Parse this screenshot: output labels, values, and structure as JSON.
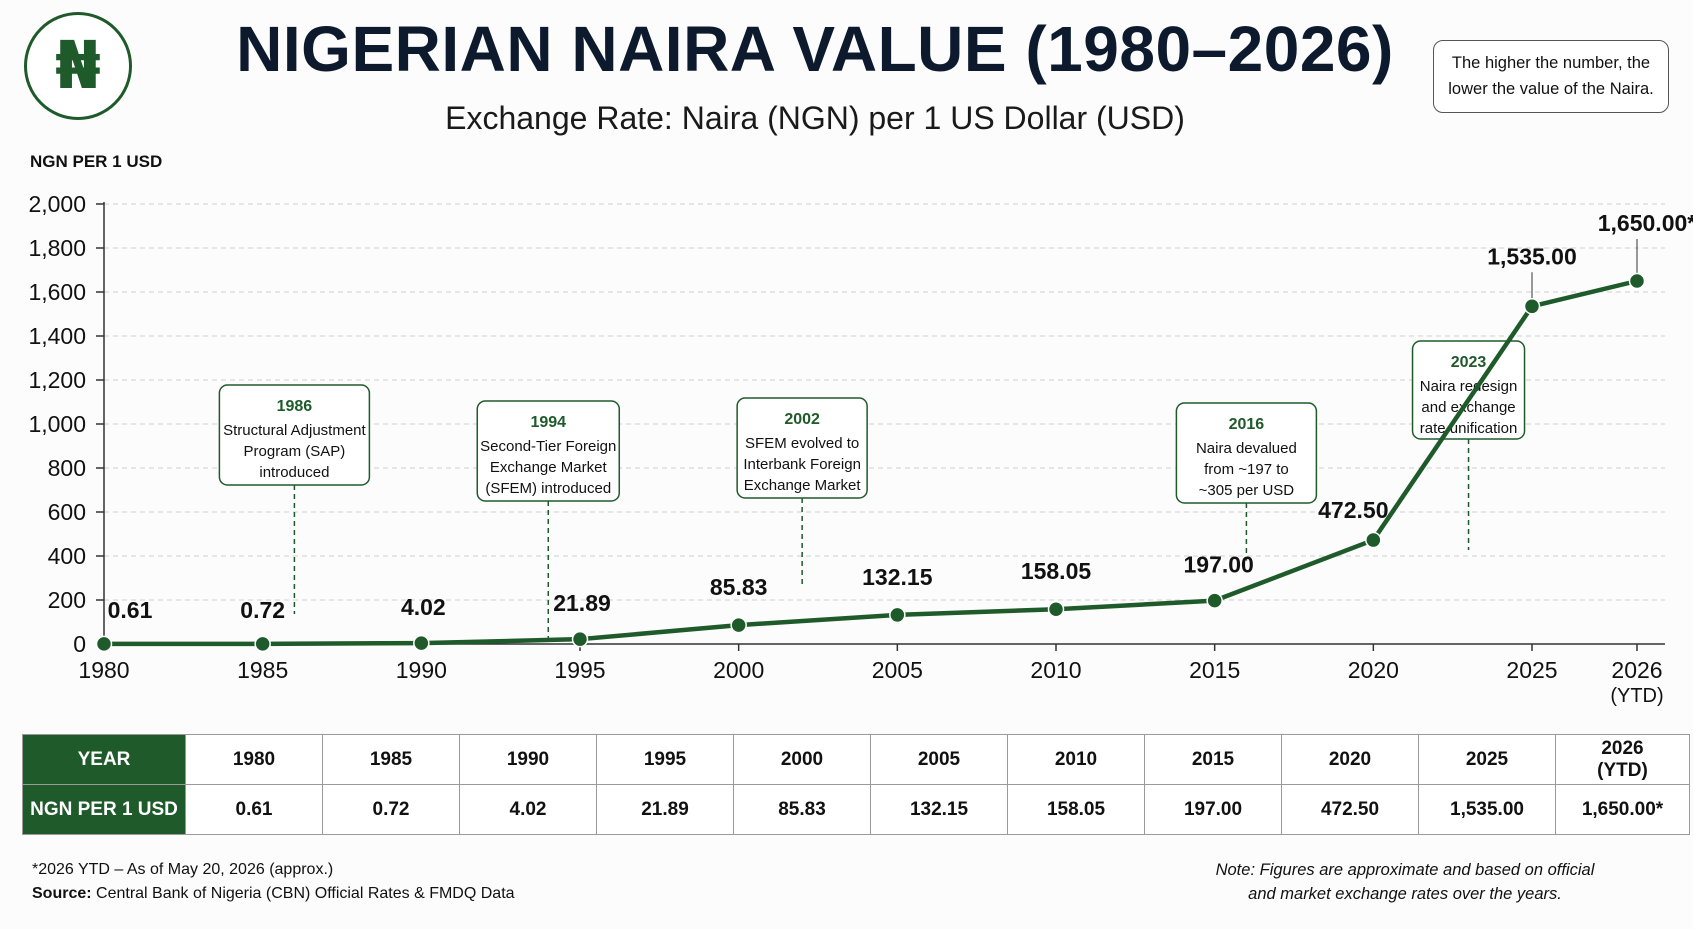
{
  "header": {
    "logo_symbol": "₦",
    "title": "NIGERIAN NAIRA VALUE (1980–2026)",
    "subtitle": "Exchange Rate: Naira (NGN) per 1 US Dollar (USD)",
    "note_line1": "The higher the number, the",
    "note_line2": "lower the value of the Naira."
  },
  "chart_data": {
    "type": "line",
    "ylabel": "NGN PER 1 USD",
    "ylim": [
      0,
      2000
    ],
    "yticks": [
      0,
      200,
      400,
      600,
      800,
      1000,
      1200,
      1400,
      1600,
      1800,
      2000
    ],
    "ytick_labels": [
      "0",
      "200",
      "400",
      "600",
      "800",
      "1,000",
      "1,200",
      "1,400",
      "1,600",
      "1,800",
      "2,000"
    ],
    "x": [
      1980,
      1985,
      1990,
      1995,
      2000,
      2005,
      2010,
      2015,
      2020,
      2025,
      2026
    ],
    "xtick_labels": [
      "1980",
      "1985",
      "1990",
      "1995",
      "2000",
      "2005",
      "2010",
      "2015",
      "2020",
      "2025",
      "2026"
    ],
    "xtick_sub": {
      "2026": "(YTD)"
    },
    "values": [
      0.61,
      0.72,
      4.02,
      21.89,
      85.83,
      132.15,
      158.05,
      197.0,
      472.5,
      1535.0,
      1650.0
    ],
    "value_labels": [
      "0.61",
      "0.72",
      "4.02",
      "21.89",
      "85.83",
      "132.15",
      "158.05",
      "197.00",
      "472.50",
      "1,535.00",
      "1,650.00*"
    ],
    "grid": true,
    "line_color": "#1f5a2b",
    "annotations": [
      {
        "x": 1986,
        "year": "1986",
        "lines": [
          "Structural Adjustment",
          "Program (SAP)",
          "introduced"
        ]
      },
      {
        "x": 1994,
        "year": "1994",
        "lines": [
          "Second-Tier Foreign",
          "Exchange Market",
          "(SFEM) introduced"
        ]
      },
      {
        "x": 2002,
        "year": "2002",
        "lines": [
          "SFEM evolved to",
          "Interbank Foreign",
          "Exchange Market"
        ]
      },
      {
        "x": 2016,
        "year": "2016",
        "lines": [
          "Naira devalued",
          "from ~197 to",
          "~305 per USD"
        ]
      },
      {
        "x": 2023,
        "year": "2023",
        "lines": [
          "Naira redesign",
          "and exchange",
          "rate unification"
        ]
      }
    ]
  },
  "table": {
    "row1_header": "YEAR",
    "row2_header": "NGN PER 1 USD",
    "years": [
      "1980",
      "1985",
      "1990",
      "1995",
      "2000",
      "2005",
      "2010",
      "2015",
      "2020",
      "2025"
    ],
    "year_last_line1": "2026",
    "year_last_line2": "(YTD)",
    "values": [
      "0.61",
      "0.72",
      "4.02",
      "21.89",
      "85.83",
      "132.15",
      "158.05",
      "197.00",
      "472.50",
      "1,535.00",
      "1,650.00*"
    ]
  },
  "footer": {
    "ytd_note": "*2026 YTD – As of May 20, 2026 (approx.)",
    "source_label": "Source:",
    "source_text": "Central Bank of Nigeria (CBN) Official Rates & FMDQ Data",
    "disclaimer_line1": "Note: Figures are approximate and based on official",
    "disclaimer_line2": "and market exchange rates over the years."
  },
  "colors": {
    "brand_green": "#1f5a2b",
    "title_navy": "#0d1a2e"
  }
}
